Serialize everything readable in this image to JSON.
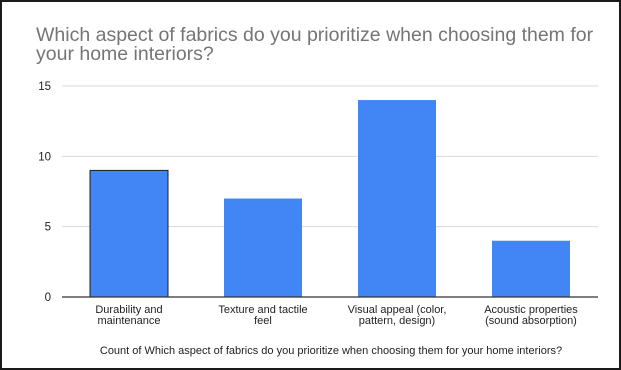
{
  "chart_data": {
    "type": "bar",
    "title": "Which aspect of fabrics do you prioritize when choosing them for your home interiors?",
    "categories": [
      [
        "Durability and",
        "maintenance"
      ],
      [
        "Texture and tactile",
        "feel"
      ],
      [
        "Visual appeal (color,",
        "pattern, design)"
      ],
      [
        "Acoustic properties",
        "(sound absorption)"
      ]
    ],
    "values": [
      9,
      7,
      14,
      4
    ],
    "xlabel": "Count of Which aspect of fabrics do you prioritize when choosing them for your home interiors?",
    "ylabel": "",
    "ylim": [
      0,
      15
    ],
    "yticks": [
      "0",
      "5",
      "10",
      "15"
    ],
    "grid": true,
    "bar_color": "#4285f4",
    "grid_color": "#d9d9d9",
    "axis_color": "#333333"
  }
}
